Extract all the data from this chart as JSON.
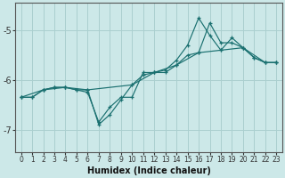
{
  "xlabel": "Humidex (Indice chaleur)",
  "bg_color": "#cce8e8",
  "grid_color": "#aacfcf",
  "line_color": "#1a7070",
  "xlim": [
    -0.5,
    23.5
  ],
  "ylim": [
    -7.45,
    -4.45
  ],
  "yticks": [
    -7,
    -6,
    -5
  ],
  "xticks": [
    0,
    1,
    2,
    3,
    4,
    5,
    6,
    7,
    8,
    9,
    10,
    11,
    12,
    13,
    14,
    15,
    16,
    17,
    18,
    19,
    20,
    21,
    22,
    23
  ],
  "line1_x": [
    0,
    1,
    2,
    3,
    4,
    5,
    6,
    7,
    8,
    9,
    10,
    11,
    12,
    13,
    14,
    15,
    16,
    17,
    18,
    19,
    20,
    21,
    22,
    23
  ],
  "line1_y": [
    -6.35,
    -6.35,
    -6.2,
    -6.15,
    -6.15,
    -6.2,
    -6.2,
    -6.9,
    -6.7,
    -6.4,
    -6.1,
    -5.9,
    -5.85,
    -5.8,
    -5.6,
    -5.3,
    -4.75,
    -5.1,
    -5.4,
    -5.15,
    -5.35,
    -5.55,
    -5.65,
    -5.65
  ],
  "line2_x": [
    0,
    1,
    2,
    3,
    4,
    5,
    6,
    7,
    8,
    9,
    10,
    11,
    12,
    13,
    14,
    15,
    16,
    17,
    18,
    19,
    20,
    21,
    22,
    23
  ],
  "line2_y": [
    -6.35,
    -6.35,
    -6.2,
    -6.15,
    -6.15,
    -6.2,
    -6.25,
    -6.85,
    -6.55,
    -6.35,
    -6.35,
    -5.85,
    -5.85,
    -5.85,
    -5.7,
    -5.5,
    -5.45,
    -4.85,
    -5.25,
    -5.25,
    -5.35,
    -5.55,
    -5.65,
    -5.65
  ],
  "line3_x": [
    0,
    2,
    4,
    6,
    10,
    12,
    14,
    16,
    18,
    20,
    22,
    23
  ],
  "line3_y": [
    -6.35,
    -6.2,
    -6.15,
    -6.2,
    -6.1,
    -5.85,
    -5.7,
    -5.45,
    -5.4,
    -5.35,
    -5.65,
    -5.65
  ]
}
